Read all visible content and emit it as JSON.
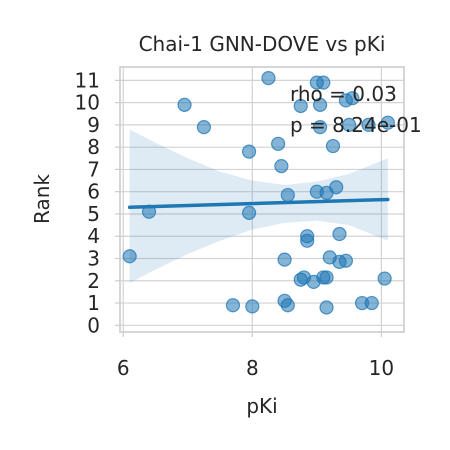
{
  "chart_data": {
    "type": "scatter",
    "title": "Chai-1 GNN-DOVE vs pKi",
    "xlabel": "pKi",
    "ylabel": "Rank",
    "xlim": [
      5.95,
      10.35
    ],
    "ylim": [
      -0.3,
      11.6
    ],
    "x_ticks": [
      6,
      8,
      10
    ],
    "x_tick_labels": [
      "6",
      "8",
      "10"
    ],
    "y_ticks": [
      0,
      1,
      2,
      3,
      4,
      5,
      6,
      7,
      8,
      9,
      10,
      11
    ],
    "y_tick_labels": [
      "0",
      "1",
      "2",
      "3",
      "4",
      "5",
      "6",
      "7",
      "8",
      "9",
      "10",
      "11"
    ],
    "grid": true,
    "annotations": [
      "rho = 0.03",
      "p = 8.24e-01"
    ],
    "colors": {
      "series": "#1f77b4",
      "grid": "#d3d3d3",
      "frame": "#cccccc",
      "text": "#262626"
    },
    "series": [
      {
        "points": [
          {
            "x": 6.1,
            "y": 3.1
          },
          {
            "x": 6.4,
            "y": 5.1
          },
          {
            "x": 6.95,
            "y": 9.9
          },
          {
            "x": 7.25,
            "y": 8.9
          },
          {
            "x": 7.7,
            "y": 0.9
          },
          {
            "x": 7.95,
            "y": 5.05
          },
          {
            "x": 7.95,
            "y": 7.8
          },
          {
            "x": 8.0,
            "y": 0.85
          },
          {
            "x": 8.25,
            "y": 11.1
          },
          {
            "x": 8.4,
            "y": 8.15
          },
          {
            "x": 8.45,
            "y": 7.15
          },
          {
            "x": 8.5,
            "y": 1.1
          },
          {
            "x": 8.5,
            "y": 2.95
          },
          {
            "x": 8.55,
            "y": 5.85
          },
          {
            "x": 8.55,
            "y": 0.9
          },
          {
            "x": 8.75,
            "y": 9.85
          },
          {
            "x": 8.75,
            "y": 2.05
          },
          {
            "x": 8.8,
            "y": 2.15
          },
          {
            "x": 8.85,
            "y": 4.0
          },
          {
            "x": 8.85,
            "y": 3.8
          },
          {
            "x": 8.95,
            "y": 1.95
          },
          {
            "x": 9.0,
            "y": 10.9
          },
          {
            "x": 9.0,
            "y": 6.0
          },
          {
            "x": 9.05,
            "y": 9.9
          },
          {
            "x": 9.05,
            "y": 8.9
          },
          {
            "x": 9.1,
            "y": 10.9
          },
          {
            "x": 9.1,
            "y": 2.15
          },
          {
            "x": 9.15,
            "y": 5.95
          },
          {
            "x": 9.15,
            "y": 2.15
          },
          {
            "x": 9.15,
            "y": 0.8
          },
          {
            "x": 9.2,
            "y": 3.05
          },
          {
            "x": 9.25,
            "y": 8.05
          },
          {
            "x": 9.3,
            "y": 6.2
          },
          {
            "x": 9.35,
            "y": 4.1
          },
          {
            "x": 9.35,
            "y": 2.85
          },
          {
            "x": 9.45,
            "y": 2.9
          },
          {
            "x": 9.45,
            "y": 10.1
          },
          {
            "x": 9.5,
            "y": 9.0
          },
          {
            "x": 9.55,
            "y": 10.2
          },
          {
            "x": 9.7,
            "y": 1.0
          },
          {
            "x": 9.8,
            "y": 9.0
          },
          {
            "x": 9.85,
            "y": 1.0
          },
          {
            "x": 10.05,
            "y": 2.1
          },
          {
            "x": 10.1,
            "y": 9.1
          }
        ],
        "regression": {
          "x": [
            6.1,
            10.1
          ],
          "y": [
            5.3,
            5.65
          ]
        },
        "ci_band": {
          "x": [
            6.1,
            6.5,
            7.0,
            7.5,
            8.0,
            8.5,
            9.0,
            9.5,
            10.1
          ],
          "upper": [
            8.8,
            8.2,
            7.5,
            6.9,
            6.5,
            6.3,
            6.45,
            6.8,
            7.5
          ],
          "lower": [
            1.9,
            2.5,
            3.2,
            3.8,
            4.3,
            4.6,
            4.7,
            4.5,
            3.8
          ]
        }
      }
    ]
  }
}
